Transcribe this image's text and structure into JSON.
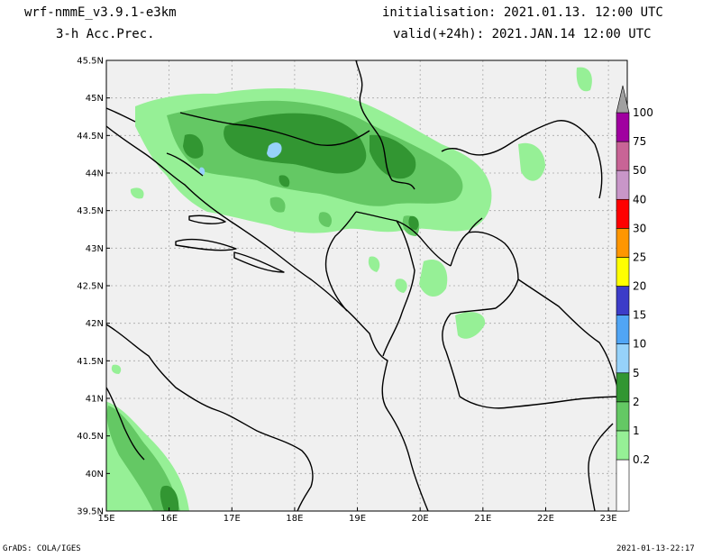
{
  "header": {
    "model": "wrf-nmmE_v3.9.1-e3km",
    "field": "3-h Acc.Prec.",
    "initialisation": "initialisation: 2021.01.13.  12:00 UTC",
    "valid": "valid(+24h): 2021.JAN.14 12:00 UTC"
  },
  "footer": {
    "left": "GrADS: COLA/IGES",
    "right": "2021-01-13-22:17"
  },
  "map": {
    "lon_range": [
      15,
      23.3
    ],
    "lat_range": [
      39.5,
      45.5
    ],
    "lat_labels": [
      "45.5N",
      "45N",
      "44.5N",
      "44N",
      "43.5N",
      "43N",
      "42.5N",
      "42N",
      "41.5N",
      "41N",
      "40.5N",
      "40N",
      "39.5N"
    ],
    "lon_labels": [
      "15E",
      "16E",
      "17E",
      "18E",
      "19E",
      "20E",
      "21E",
      "22E",
      "23E"
    ],
    "background_color": "#f0f0f0",
    "grid": true
  },
  "colorbar": {
    "levels": [
      {
        "label": "0.2",
        "color": "#96f096"
      },
      {
        "label": "1",
        "color": "#64c864"
      },
      {
        "label": "2",
        "color": "#329632"
      },
      {
        "label": "5",
        "color": "#96d2fa"
      },
      {
        "label": "10",
        "color": "#50a5f5"
      },
      {
        "label": "15",
        "color": "#3c3cc8"
      },
      {
        "label": "20",
        "color": "#ffff00"
      },
      {
        "label": "25",
        "color": "#ff9600"
      },
      {
        "label": "30",
        "color": "#ff0000"
      },
      {
        "label": "40",
        "color": "#c896c8"
      },
      {
        "label": "50",
        "color": "#c86496"
      },
      {
        "label": "75",
        "color": "#a000a0"
      },
      {
        "label": "100",
        "color": "#a0a0a0"
      }
    ]
  }
}
